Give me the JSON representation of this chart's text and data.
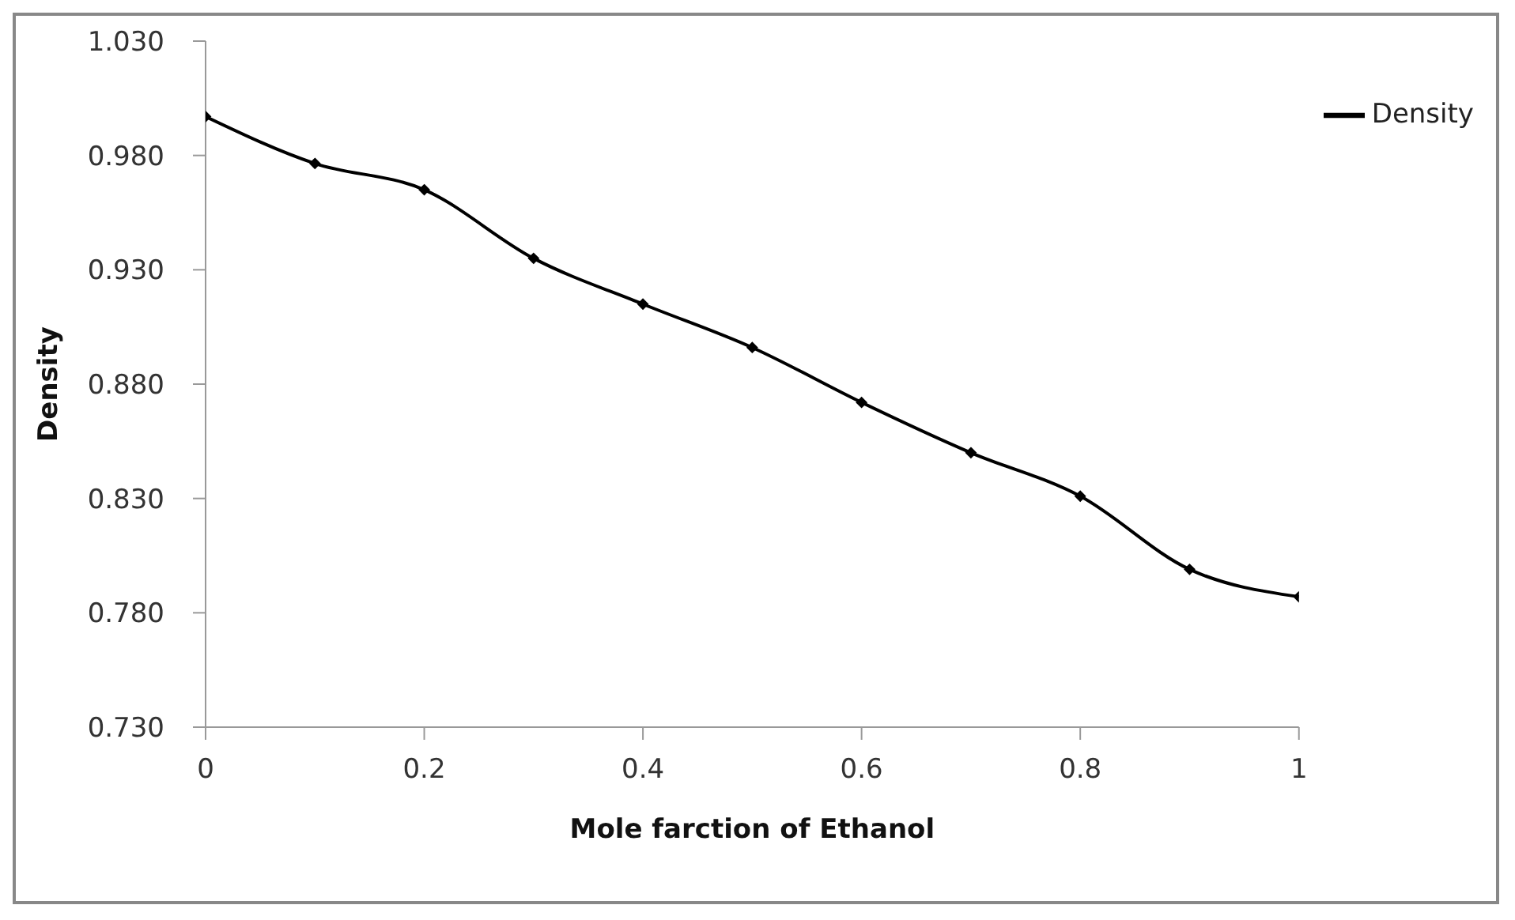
{
  "chart_data": {
    "type": "line",
    "xlabel": "Mole  farction of Ethanol",
    "ylabel": "Density",
    "x": [
      0,
      0.1,
      0.2,
      0.3,
      0.4,
      0.5,
      0.6,
      0.7,
      0.8,
      0.9,
      1
    ],
    "series": [
      {
        "name": "Density",
        "color": "#000000",
        "values": [
          0.997,
          0.9765,
          0.965,
          0.935,
          0.915,
          0.896,
          0.872,
          0.85,
          0.831,
          0.799,
          0.787
        ]
      }
    ],
    "xlim": [
      0,
      1
    ],
    "xticks": [
      0,
      {
        "value": 0.2,
        "label": "0.2"
      },
      {
        "value": 0.4,
        "label": "0.4"
      },
      {
        "value": 0.6,
        "label": "0.6"
      },
      {
        "value": 0.8,
        "label": "0.8"
      },
      1
    ],
    "ylim": [
      0.73,
      1.03
    ],
    "yticks": [
      {
        "value": 0.73,
        "label": "0.730"
      },
      {
        "value": 0.78,
        "label": "0.780"
      },
      {
        "value": 0.83,
        "label": "0.830"
      },
      {
        "value": 0.88,
        "label": "0.880"
      },
      {
        "value": 0.93,
        "label": "0.930"
      },
      {
        "value": 0.98,
        "label": "0.980"
      },
      {
        "value": 1.03,
        "label": "1.030"
      }
    ],
    "grid": false,
    "legend": "top right",
    "marker": "diamond",
    "line_style": "solid"
  }
}
